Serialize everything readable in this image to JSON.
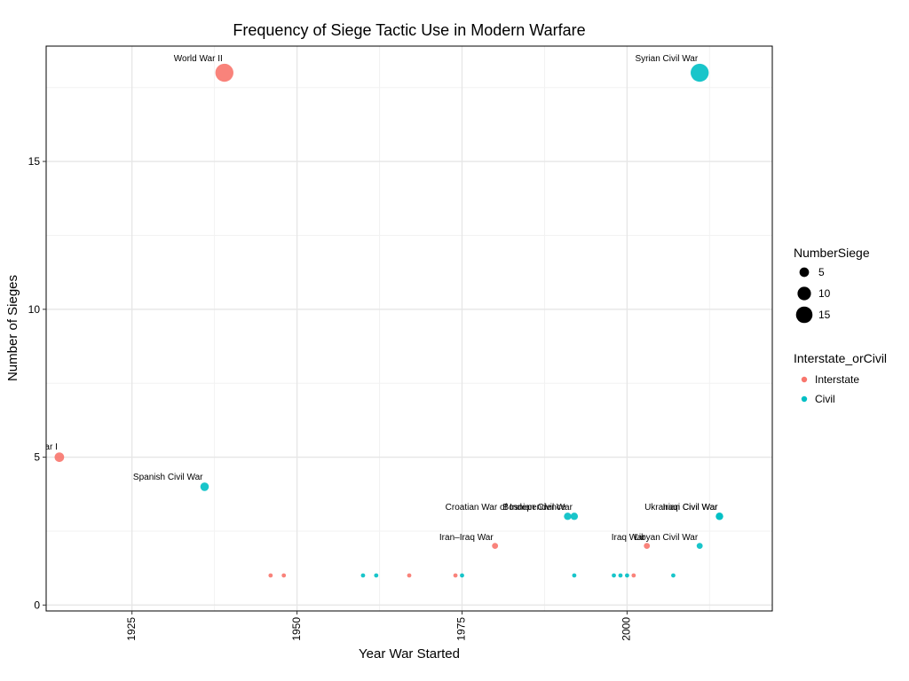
{
  "chart_data": {
    "type": "scatter",
    "title": "Frequency of Siege Tactic Use in Modern Warfare",
    "xlabel": "Year War Started",
    "ylabel": "Number of Sieges",
    "xlim": [
      1912,
      2022
    ],
    "ylim": [
      -0.2,
      18.9
    ],
    "x_ticks": [
      1925,
      1950,
      1975,
      2000
    ],
    "x_ticks_minor": [
      1937.5,
      1962.5,
      1987.5,
      2012.5
    ],
    "y_ticks": [
      0,
      5,
      10,
      15
    ],
    "y_ticks_minor": [
      2.5,
      7.5,
      12.5,
      17.5
    ],
    "grid": true,
    "legend_position": "right",
    "colors": {
      "Interstate": "#F8766D",
      "Civil": "#00BFC4"
    },
    "size_legend": {
      "title": "NumberSiege",
      "values": [
        5,
        10,
        15
      ]
    },
    "color_legend": {
      "title": "Interstate_orCivil",
      "entries": [
        "Interstate",
        "Civil"
      ]
    },
    "series": [
      {
        "name": "Interstate",
        "points": [
          {
            "x": 1914,
            "y": 5,
            "label": "World War I"
          },
          {
            "x": 1939,
            "y": 18,
            "label": "World War II"
          },
          {
            "x": 1980,
            "y": 2,
            "label": "Iran–Iraq War"
          },
          {
            "x": 2003,
            "y": 2,
            "label": "Iraq War"
          },
          {
            "x": 1946,
            "y": 1,
            "label": ""
          },
          {
            "x": 1948,
            "y": 1,
            "label": ""
          },
          {
            "x": 1967,
            "y": 1,
            "label": ""
          },
          {
            "x": 1974,
            "y": 1,
            "label": ""
          },
          {
            "x": 2001,
            "y": 1,
            "label": ""
          }
        ]
      },
      {
        "name": "Civil",
        "points": [
          {
            "x": 1936,
            "y": 4,
            "label": "Spanish Civil War"
          },
          {
            "x": 2011,
            "y": 18,
            "label": "Syrian Civil War"
          },
          {
            "x": 1991,
            "y": 3,
            "label": "Croatian War of Independence"
          },
          {
            "x": 1992,
            "y": 3,
            "label": "Bosnian Civil War"
          },
          {
            "x": 2014,
            "y": 3,
            "label": "Ukranian Civil War"
          },
          {
            "x": 2014,
            "y": 3,
            "label": "Iraqi Civil War"
          },
          {
            "x": 2011,
            "y": 2,
            "label": "Libyan Civil War"
          },
          {
            "x": 1960,
            "y": 1,
            "label": ""
          },
          {
            "x": 1962,
            "y": 1,
            "label": ""
          },
          {
            "x": 1975,
            "y": 1,
            "label": ""
          },
          {
            "x": 1992,
            "y": 1,
            "label": ""
          },
          {
            "x": 1998,
            "y": 1,
            "label": ""
          },
          {
            "x": 1999,
            "y": 1,
            "label": ""
          },
          {
            "x": 2000,
            "y": 1,
            "label": ""
          },
          {
            "x": 2007,
            "y": 1,
            "label": ""
          }
        ]
      }
    ]
  }
}
